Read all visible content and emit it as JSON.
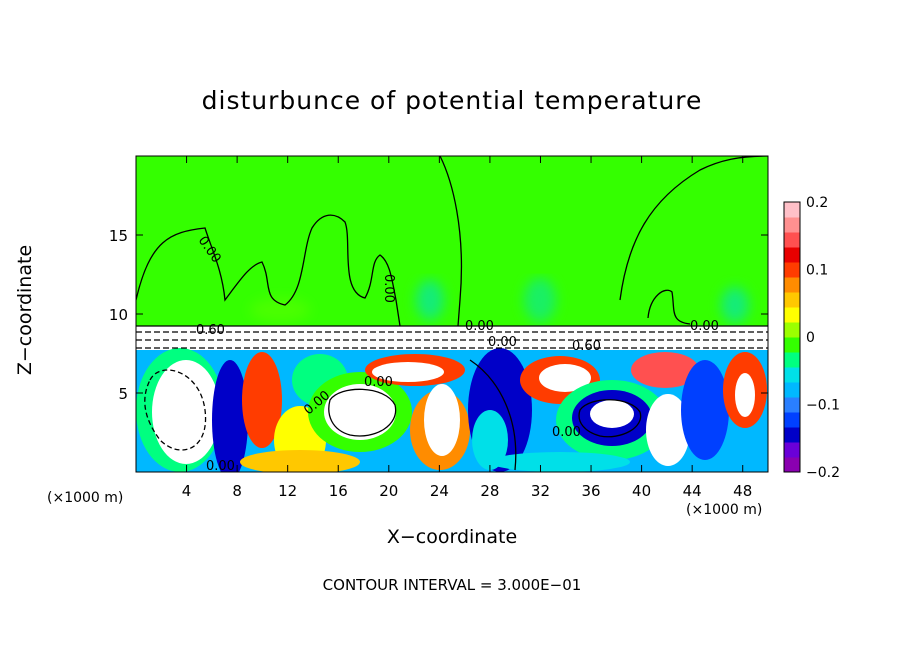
{
  "chart_data": {
    "type": "heatmap",
    "title": "disturbunce of potential temperature",
    "xlabel": "X−coordinate",
    "ylabel": "Z−coordinate",
    "x_unit_left": "(×1000 m)",
    "x_unit_right": "(×1000 m)",
    "xlim": [
      0,
      50
    ],
    "ylim": [
      0,
      20
    ],
    "x_ticks": [
      4,
      8,
      12,
      16,
      20,
      24,
      28,
      32,
      36,
      40,
      44,
      48
    ],
    "x_tick_labels": [
      "4",
      "8",
      "12",
      "16",
      "20",
      "24",
      "28",
      "32",
      "36",
      "40",
      "44",
      "48"
    ],
    "y_ticks": [
      5,
      10,
      15
    ],
    "y_tick_labels": [
      "5",
      "10",
      "15"
    ],
    "colorbar": {
      "range": [
        -0.2,
        0.2
      ],
      "tick_values": [
        0.2,
        0.1,
        0,
        -0.1,
        -0.2
      ],
      "tick_labels": [
        "0.2",
        "0.1",
        "0",
        "−0.1",
        "−0.2"
      ],
      "colors": [
        "#8a00b0",
        "#6a00d8",
        "#0000c8",
        "#0040ff",
        "#2a7fff",
        "#00b8ff",
        "#00e0e8",
        "#00ff80",
        "#34ff00",
        "#9cff00",
        "#ffff00",
        "#ffc800",
        "#ff8c00",
        "#ff3c00",
        "#e80000",
        "#ff5050",
        "#ff9090",
        "#ffc0c8"
      ]
    },
    "contour_labels": [
      "0.00",
      "0.00",
      "0.00",
      "0.60",
      "0.00",
      "0.00",
      "0.00",
      "0.00",
      "0.60",
      "0.00",
      "0.00"
    ],
    "footer": "CONTOUR INTERVAL = 3.000E−01"
  }
}
